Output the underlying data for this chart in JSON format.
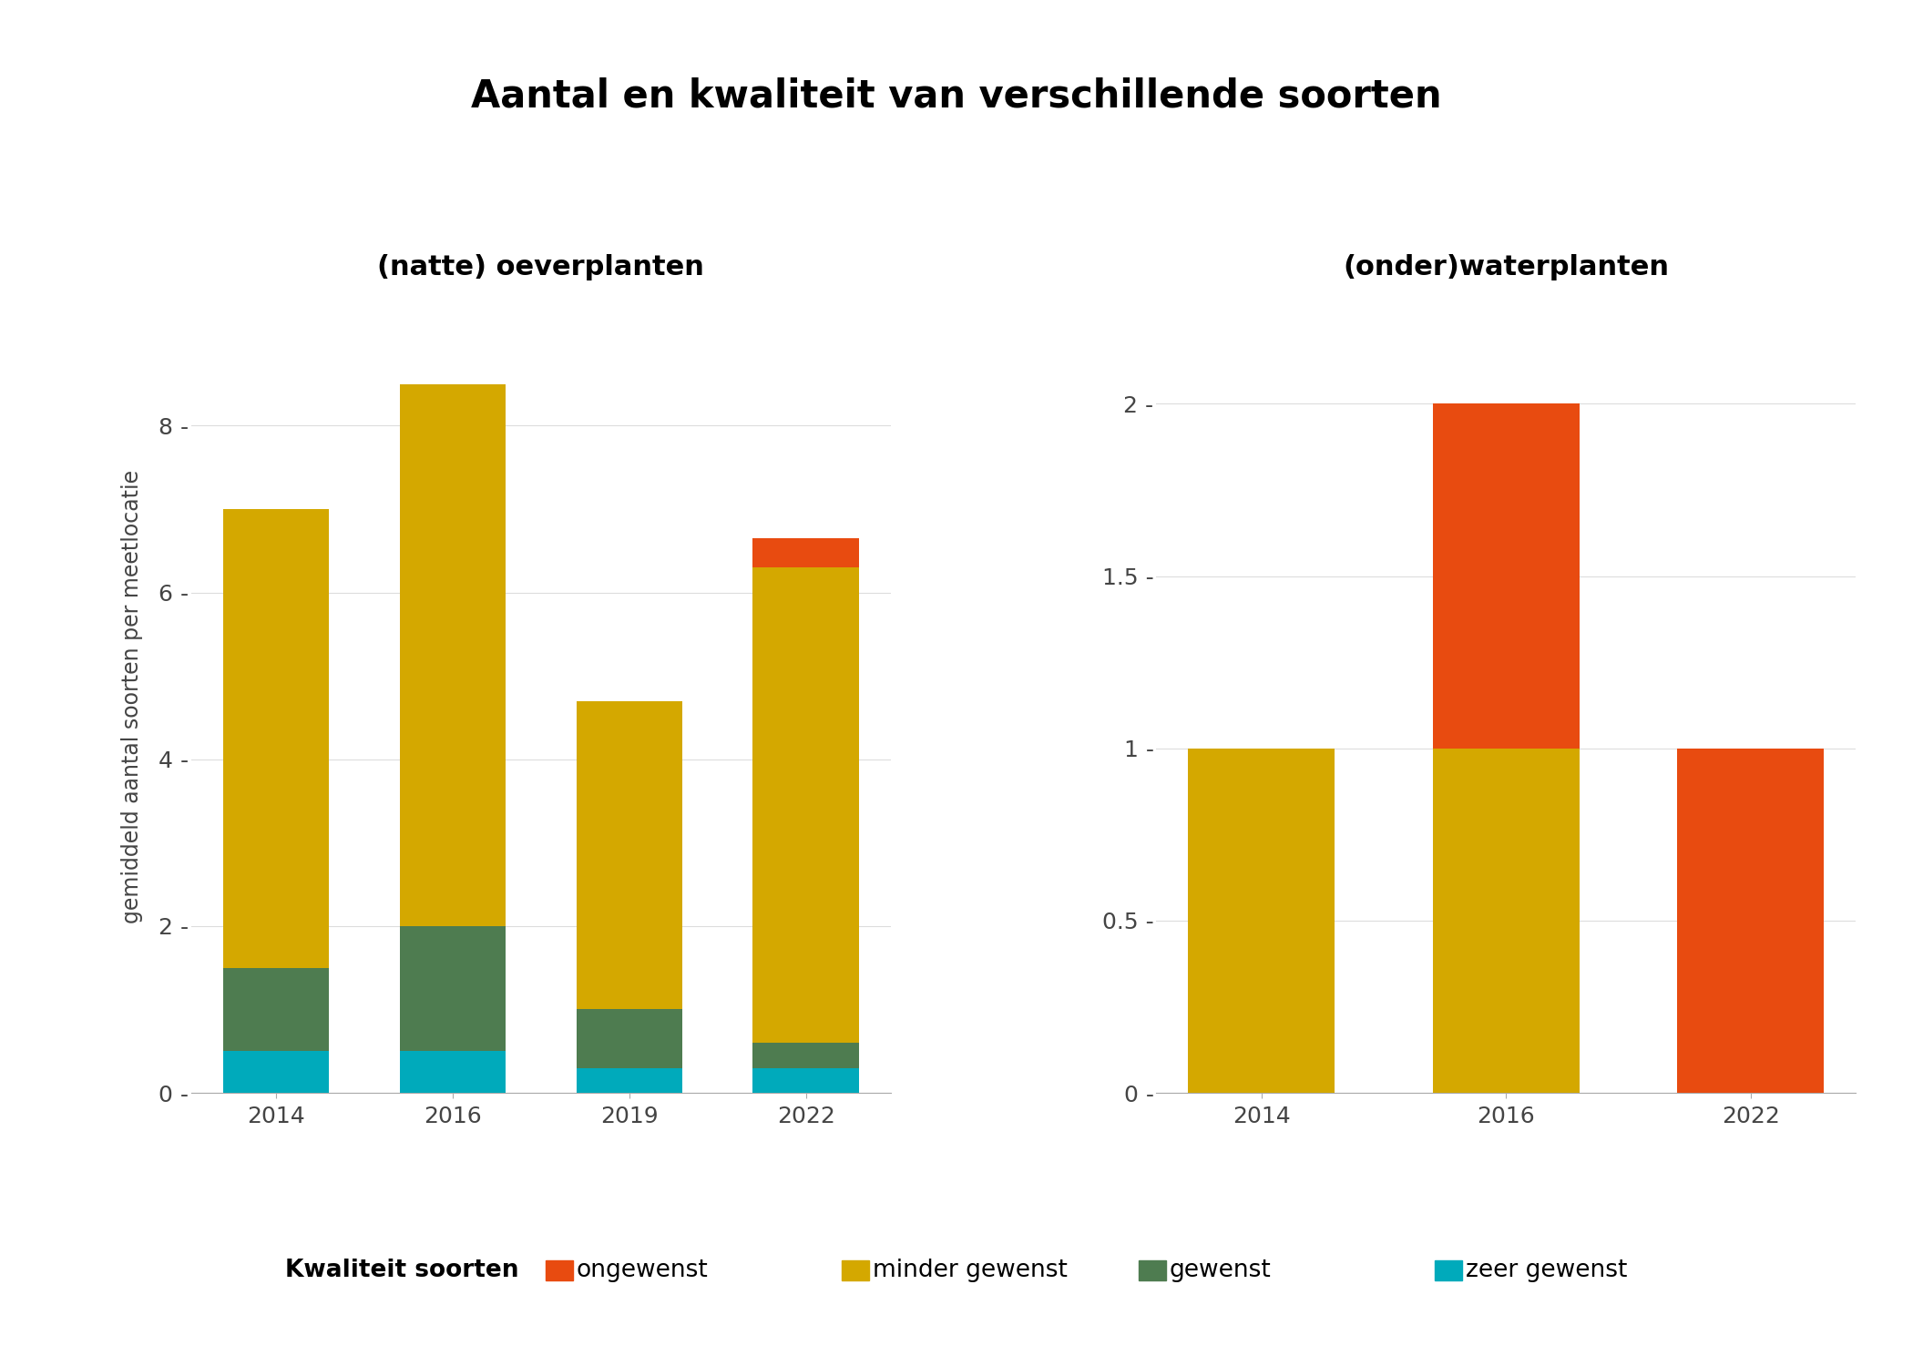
{
  "title": "Aantal en kwaliteit van verschillende soorten",
  "subtitle_left": "(natte) oeverplanten",
  "subtitle_right": "(onder)waterplanten",
  "ylabel": "gemiddeld aantal soorten per meetlocatie",
  "colors": {
    "ongewenst": "#E84B10",
    "minder_gewenst": "#D4A800",
    "gewenst": "#4E7C50",
    "zeer_gewenst": "#00AABB"
  },
  "left": {
    "years": [
      "2014",
      "2016",
      "2019",
      "2022"
    ],
    "zeer_gewenst": [
      0.5,
      0.5,
      0.3,
      0.3
    ],
    "gewenst": [
      1.0,
      1.5,
      0.7,
      0.3
    ],
    "minder_gewenst": [
      5.5,
      6.5,
      3.7,
      5.7
    ],
    "ongewenst": [
      0.0,
      0.0,
      0.0,
      0.35
    ],
    "ylim": [
      0,
      9.5
    ],
    "yticks": [
      0,
      2,
      4,
      6,
      8
    ]
  },
  "right": {
    "years": [
      "2014",
      "2016",
      "2022"
    ],
    "zeer_gewenst": [
      0.0,
      0.0,
      0.0
    ],
    "gewenst": [
      0.0,
      0.0,
      0.0
    ],
    "minder_gewenst": [
      1.0,
      1.0,
      0.0
    ],
    "ongewenst": [
      0.0,
      1.0,
      1.0
    ],
    "ylim": [
      0,
      2.3
    ],
    "yticks": [
      0.0,
      0.5,
      1.0,
      1.5,
      2.0
    ]
  },
  "legend_labels": [
    "ongewenst",
    "minder gewenst",
    "gewenst",
    "zeer gewenst"
  ],
  "legend_title": "Kwaliteit soorten",
  "background_color": "#FFFFFF",
  "title_fontsize": 30,
  "subtitle_fontsize": 22,
  "ylabel_fontsize": 17,
  "tick_fontsize": 18,
  "legend_fontsize": 19
}
